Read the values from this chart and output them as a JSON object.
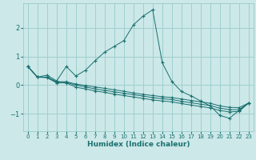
{
  "xlabel": "Humidex (Indice chaleur)",
  "bg_color": "#cce8e8",
  "grid_color": "#99cccc",
  "line_color": "#1a7070",
  "xlim": [
    -0.5,
    23.5
  ],
  "ylim": [
    -1.6,
    2.85
  ],
  "yticks": [
    -1,
    0,
    1,
    2
  ],
  "xticks": [
    0,
    1,
    2,
    3,
    4,
    5,
    6,
    7,
    8,
    9,
    10,
    11,
    12,
    13,
    14,
    15,
    16,
    17,
    18,
    19,
    20,
    21,
    22,
    23
  ],
  "lines": [
    {
      "x": [
        0,
        1,
        2,
        3,
        4,
        5,
        6,
        7,
        8,
        9,
        10,
        11,
        12,
        13,
        14,
        15,
        16,
        17,
        18,
        19,
        20,
        21,
        22,
        23
      ],
      "y": [
        0.65,
        0.28,
        0.35,
        0.15,
        0.65,
        0.32,
        0.52,
        0.85,
        1.15,
        1.35,
        1.55,
        2.1,
        2.4,
        2.62,
        0.78,
        0.13,
        -0.22,
        -0.37,
        -0.55,
        -0.72,
        -1.05,
        -1.15,
        -0.88,
        -0.62
      ]
    },
    {
      "x": [
        0,
        1,
        2,
        3,
        4,
        5,
        6,
        7,
        8,
        9,
        10,
        11,
        12,
        13,
        14,
        15,
        16,
        17,
        18,
        19,
        20,
        21,
        22,
        23
      ],
      "y": [
        0.65,
        0.28,
        0.28,
        0.12,
        0.12,
        0.04,
        -0.01,
        -0.06,
        -0.11,
        -0.16,
        -0.21,
        -0.27,
        -0.32,
        -0.36,
        -0.4,
        -0.43,
        -0.48,
        -0.53,
        -0.58,
        -0.63,
        -0.72,
        -0.77,
        -0.78,
        -0.62
      ]
    },
    {
      "x": [
        0,
        1,
        2,
        3,
        4,
        5,
        6,
        7,
        8,
        9,
        10,
        11,
        12,
        13,
        14,
        15,
        16,
        17,
        18,
        19,
        20,
        21,
        22,
        23
      ],
      "y": [
        0.65,
        0.28,
        0.28,
        0.1,
        0.1,
        0.0,
        -0.06,
        -0.13,
        -0.18,
        -0.23,
        -0.28,
        -0.33,
        -0.38,
        -0.43,
        -0.47,
        -0.5,
        -0.56,
        -0.61,
        -0.66,
        -0.71,
        -0.8,
        -0.85,
        -0.85,
        -0.62
      ]
    },
    {
      "x": [
        0,
        1,
        2,
        3,
        4,
        5,
        6,
        7,
        8,
        9,
        10,
        11,
        12,
        13,
        14,
        15,
        16,
        17,
        18,
        19,
        20,
        21,
        22,
        23
      ],
      "y": [
        0.65,
        0.28,
        0.26,
        0.08,
        0.08,
        -0.07,
        -0.13,
        -0.2,
        -0.25,
        -0.31,
        -0.36,
        -0.41,
        -0.46,
        -0.51,
        -0.55,
        -0.58,
        -0.64,
        -0.69,
        -0.74,
        -0.79,
        -0.88,
        -0.93,
        -0.91,
        -0.62
      ]
    }
  ]
}
